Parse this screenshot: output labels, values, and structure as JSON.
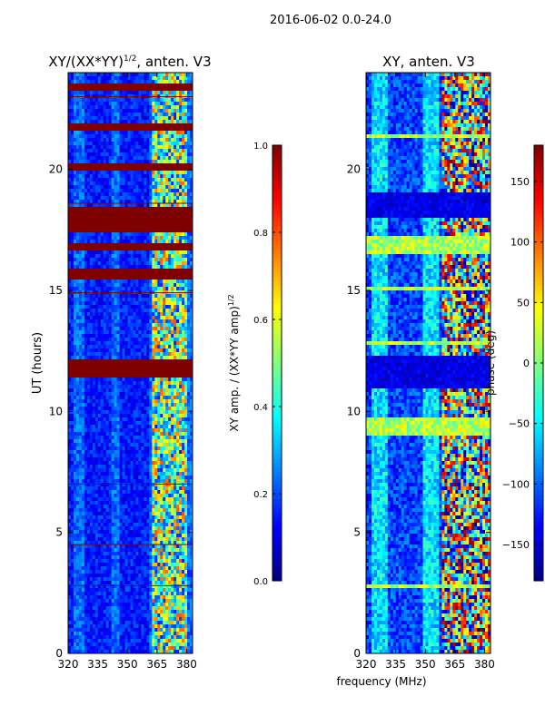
{
  "suptitle": "2016-06-02 0.0-24.0",
  "colormap": [
    "#00007f",
    "#0000ff",
    "#007fff",
    "#00ffff",
    "#7fff7f",
    "#ffff00",
    "#ff7f00",
    "#ff0000",
    "#7f0000"
  ],
  "chart_data": [
    {
      "type": "heatmap",
      "title_main": "XY/(XX*YY)",
      "title_exp": "1/2",
      "title_rest": ", anten. V3",
      "ylabel": "UT (hours)",
      "xlabel": "",
      "xlim": [
        320,
        383
      ],
      "ylim": [
        0,
        24
      ],
      "xticks": [
        320,
        335,
        350,
        365,
        380
      ],
      "yticks": [
        0,
        5,
        10,
        15,
        20
      ],
      "high_band_mhz": [
        362,
        380
      ],
      "saturated_hours": [
        [
          17.4,
          18.5
        ],
        [
          15.4,
          15.9
        ],
        [
          11.4,
          12.1
        ],
        [
          21.6,
          21.9
        ],
        [
          20.0,
          20.3
        ],
        [
          23.2,
          23.5
        ],
        [
          16.7,
          17.0
        ]
      ],
      "gap_hours": [
        2.8,
        14.9,
        18.6,
        7.0,
        4.5,
        23.0
      ],
      "colorbar": {
        "label_main": "XY amp. / (XX*YY amp)",
        "label_exp": "1/2",
        "range": [
          0.0,
          1.0
        ],
        "ticks": [
          "0.0",
          "0.2",
          "0.4",
          "0.6",
          "0.8",
          "1.0"
        ]
      }
    },
    {
      "type": "heatmap",
      "title": "XY, anten. V3",
      "ylabel": "",
      "xlabel": "frequency (MHz)",
      "xlim": [
        320,
        383
      ],
      "ylim": [
        0,
        24
      ],
      "xticks": [
        320,
        335,
        350,
        365,
        380
      ],
      "yticks": [
        0,
        5,
        10,
        15,
        20
      ],
      "high_band_mhz": [
        358,
        383
      ],
      "flat_hours": [
        [
          18.0,
          19.0
        ],
        [
          11.0,
          12.3
        ]
      ],
      "mid_hours": [
        [
          9.0,
          9.8
        ],
        [
          16.5,
          17.2
        ],
        [
          2.7,
          2.9
        ],
        [
          12.7,
          12.9
        ],
        [
          15.0,
          15.2
        ],
        [
          21.3,
          21.4
        ]
      ],
      "colorbar": {
        "label": "phase (deg)",
        "range": [
          -180,
          180
        ],
        "ticks": [
          "-150",
          "-100",
          "-50",
          "0",
          "50",
          "100",
          "150"
        ]
      }
    }
  ]
}
